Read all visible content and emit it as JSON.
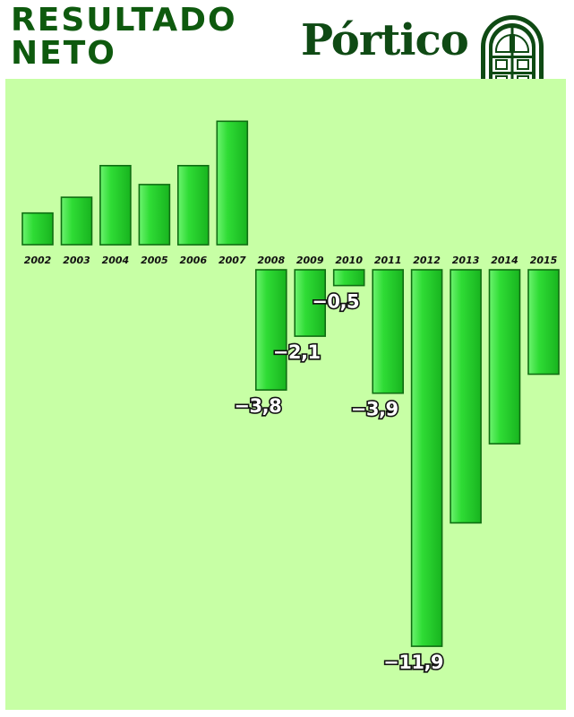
{
  "header": {
    "title": "RESULTADO\nNETO",
    "logo_text": "Pórtico"
  },
  "colors": {
    "background": "#c7ffa5",
    "bar_fill": "#22d32e",
    "bar_edge": "#0f6e12",
    "title": "#0e5a0e",
    "logo": "#0f4a14"
  },
  "chart_data": {
    "type": "bar",
    "title": "RESULTADO NETO",
    "xlabel": "",
    "ylabel": "",
    "categories": [
      "2002",
      "2003",
      "2004",
      "2005",
      "2006",
      "2007",
      "2008",
      "2009",
      "2010",
      "2011",
      "2012",
      "2013",
      "2014",
      "2015"
    ],
    "values": [
      1.0,
      1.5,
      2.5,
      1.9,
      2.5,
      3.9,
      -3.8,
      -2.1,
      -0.5,
      -3.9,
      -11.9,
      -8.0,
      -5.5,
      -3.3
    ],
    "value_labels": [
      "",
      "",
      "",
      "",
      "",
      "",
      "−3,8",
      "−2,1",
      "−0,5",
      "−3,9",
      "−11,9",
      "",
      "",
      ""
    ],
    "ylim": [
      -11.9,
      3.9
    ],
    "grid": false,
    "legend": "none"
  }
}
